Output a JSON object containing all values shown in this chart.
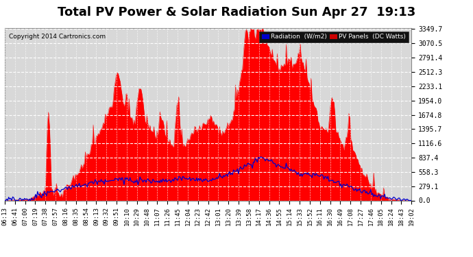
{
  "title": "Total PV Power & Solar Radiation Sun Apr 27  19:13",
  "copyright_text": "Copyright 2014 Cartronics.com",
  "bg_color": "#ffffff",
  "plot_bg_color": "#d8d8d8",
  "grid_color": "#ffffff",
  "y_ticks": [
    0.0,
    279.1,
    558.3,
    837.4,
    1116.6,
    1395.7,
    1674.8,
    1954.0,
    2233.1,
    2512.3,
    2791.4,
    3070.5,
    3349.7
  ],
  "x_labels": [
    "06:13",
    "06:41",
    "07:00",
    "07:19",
    "07:38",
    "07:57",
    "08:16",
    "08:35",
    "08:54",
    "09:13",
    "09:32",
    "09:51",
    "10:10",
    "10:29",
    "10:48",
    "11:07",
    "11:26",
    "11:45",
    "12:04",
    "12:23",
    "12:42",
    "13:01",
    "13:20",
    "13:39",
    "13:58",
    "14:17",
    "14:36",
    "14:55",
    "15:14",
    "15:33",
    "15:52",
    "16:11",
    "16:30",
    "16:49",
    "17:08",
    "17:27",
    "17:46",
    "18:05",
    "18:24",
    "18:43",
    "19:02"
  ],
  "pv_fill_color": "#ff0000",
  "radiation_line_color": "#0000cc",
  "title_fontsize": 13,
  "tick_fontsize": 7,
  "y_max": 3349.7,
  "y_min": 0.0,
  "n_points": 410
}
